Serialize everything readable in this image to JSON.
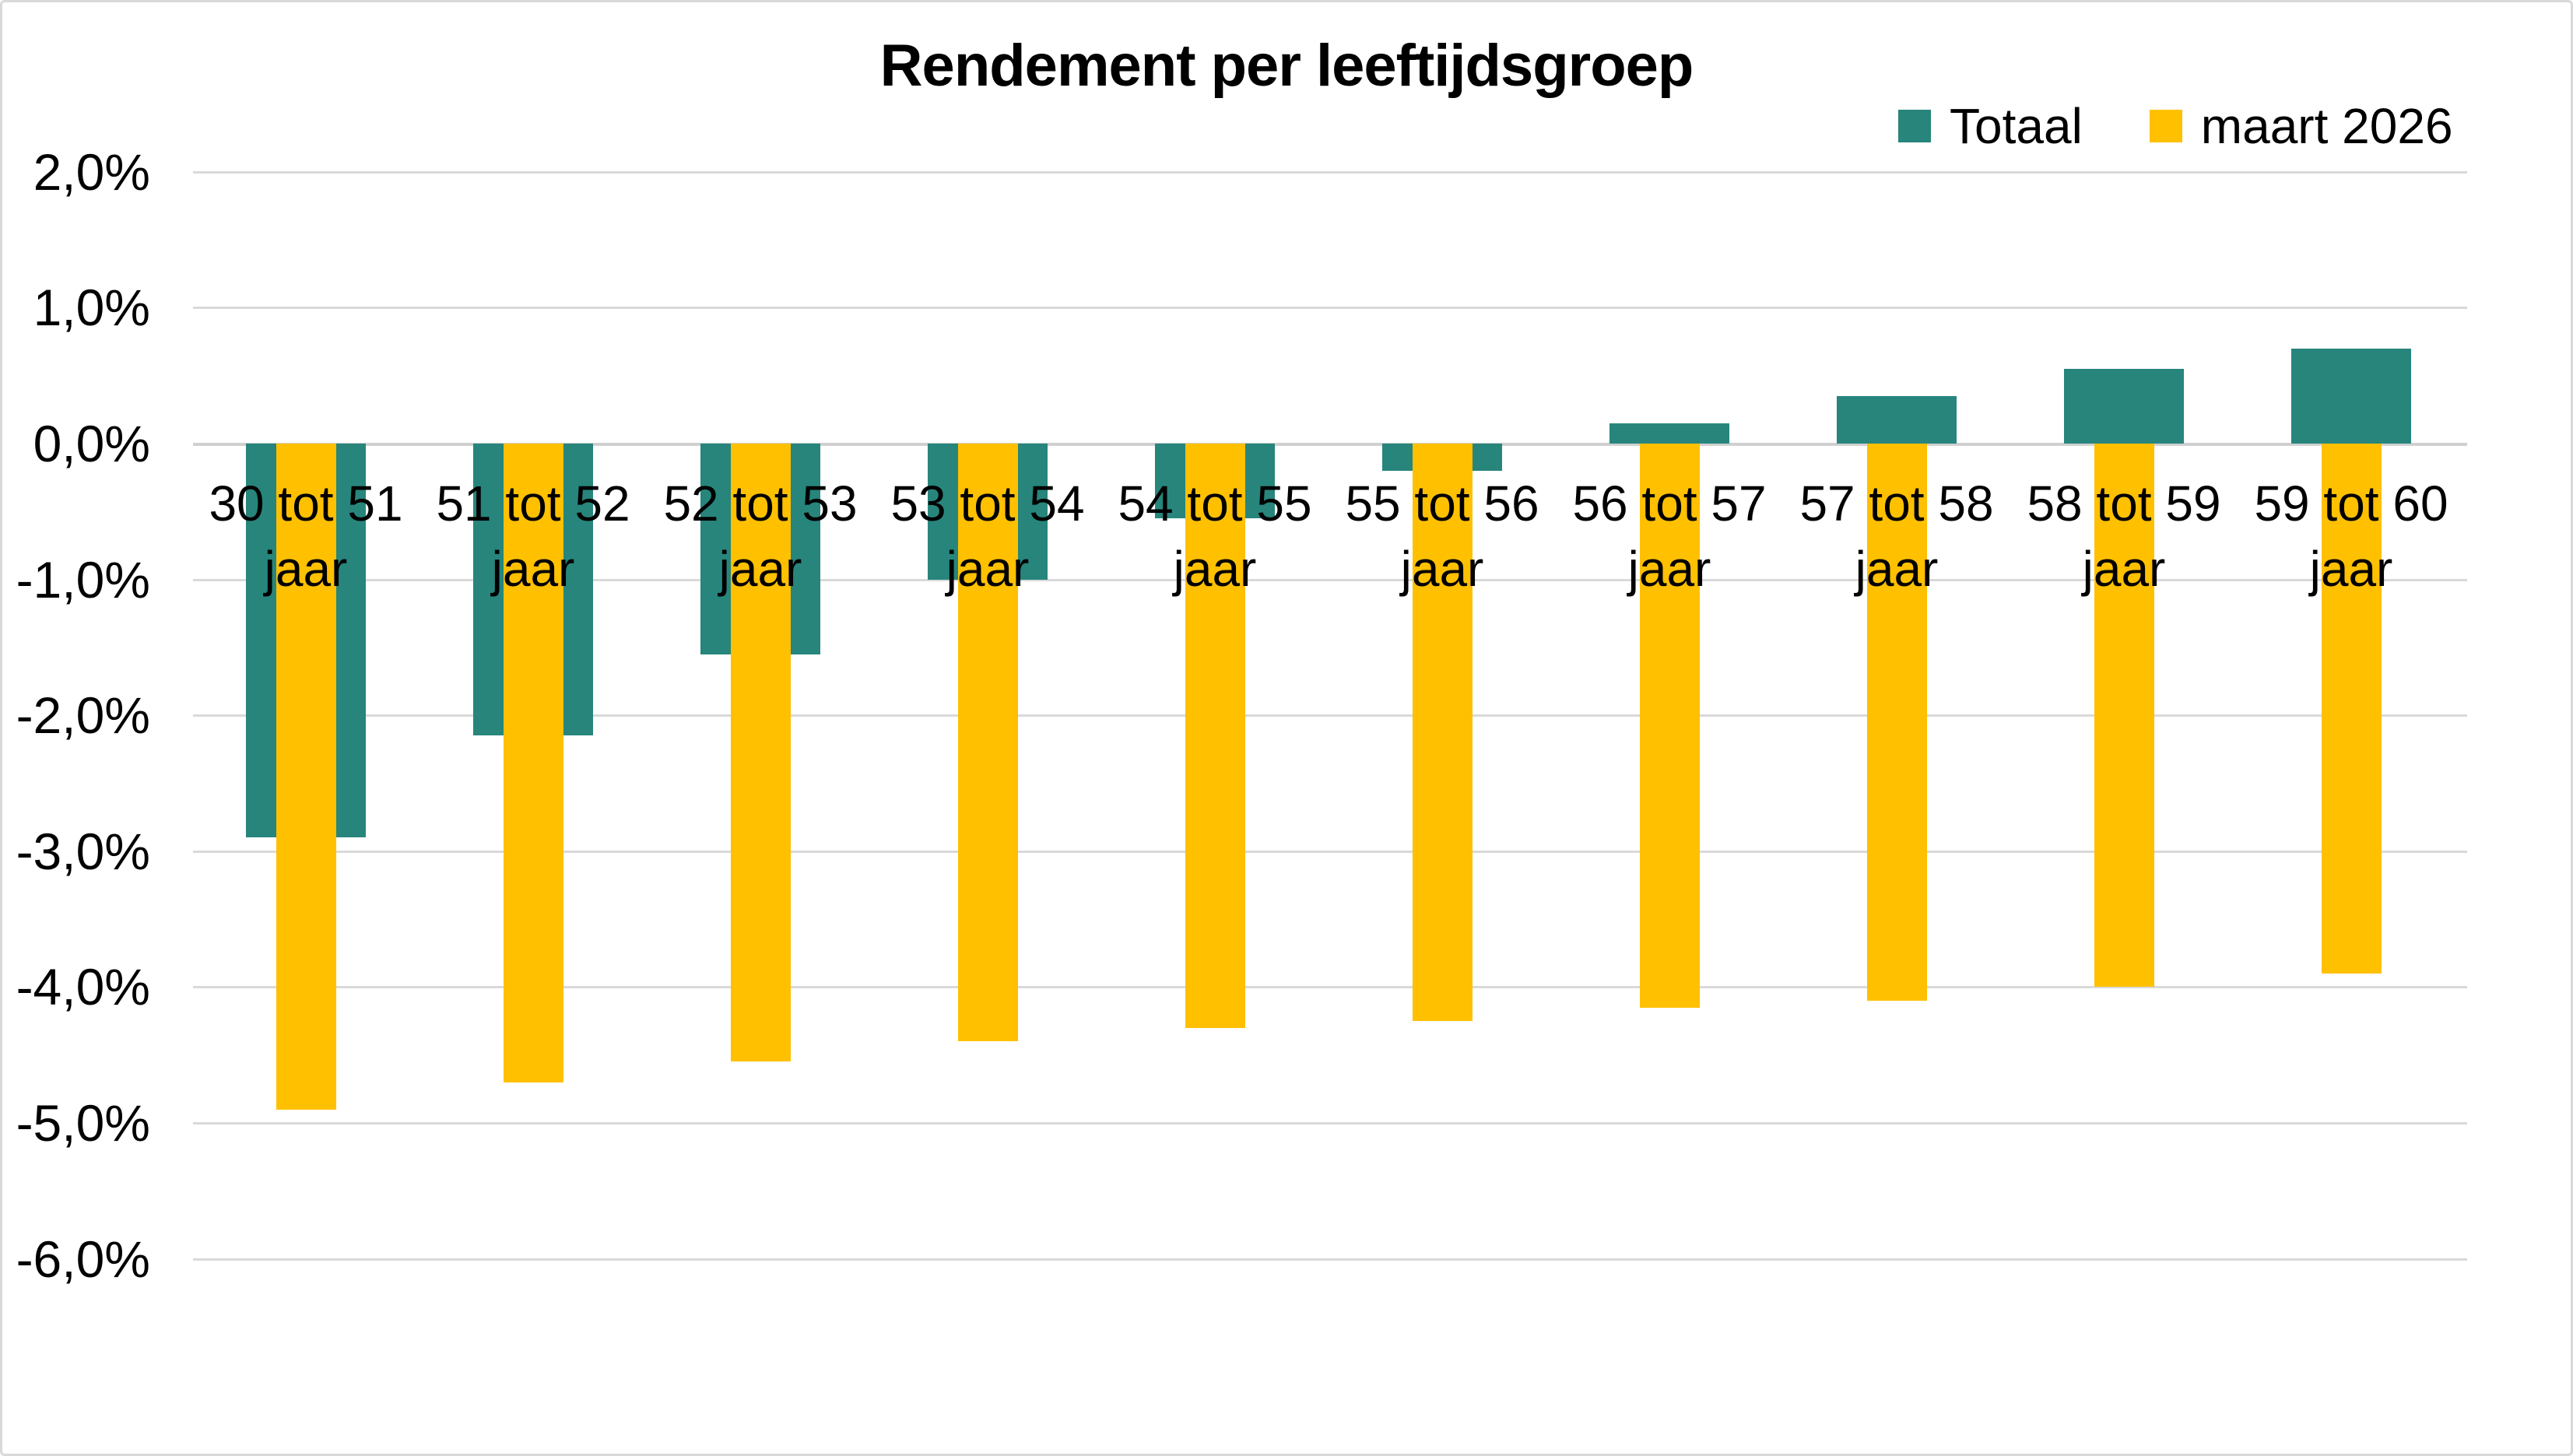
{
  "chart_data": {
    "type": "bar",
    "title": "Rendement per leeftijdsgroep",
    "unit": "%",
    "grid": true,
    "legend_position": "top-right",
    "categories": [
      {
        "line1": "30 tot 51",
        "line2": "jaar"
      },
      {
        "line1": "51 tot 52",
        "line2": "jaar"
      },
      {
        "line1": "52 tot 53",
        "line2": "jaar"
      },
      {
        "line1": "53 tot 54",
        "line2": "jaar"
      },
      {
        "line1": "54 tot 55",
        "line2": "jaar"
      },
      {
        "line1": "55 tot 56",
        "line2": "jaar"
      },
      {
        "line1": "56 tot 57",
        "line2": "jaar"
      },
      {
        "line1": "57 tot 58",
        "line2": "jaar"
      },
      {
        "line1": "58 tot 59",
        "line2": "jaar"
      },
      {
        "line1": "59 tot 60",
        "line2": "jaar"
      }
    ],
    "series": [
      {
        "name": "Totaal",
        "color": "#27857C",
        "values": [
          -2.9,
          -2.15,
          -1.55,
          -1.0,
          -0.55,
          -0.2,
          0.15,
          0.35,
          0.55,
          0.7
        ]
      },
      {
        "name": "maart 2026",
        "color": "#FFC000",
        "values": [
          -4.9,
          -4.7,
          -4.55,
          -4.4,
          -4.3,
          -4.25,
          -4.15,
          -4.1,
          -4.0,
          -3.9
        ]
      }
    ],
    "y_axis": {
      "min": -6,
      "max": 2,
      "ticks": [
        {
          "value": 2,
          "label": "2,0%"
        },
        {
          "value": 1,
          "label": "1,0%"
        },
        {
          "value": 0,
          "label": "0,0%"
        },
        {
          "value": -1,
          "label": "-1,0%"
        },
        {
          "value": -2,
          "label": "-2,0%"
        },
        {
          "value": -3,
          "label": "-3,0%"
        },
        {
          "value": -4,
          "label": "-4,0%"
        },
        {
          "value": -5,
          "label": "-5,0%"
        },
        {
          "value": -6,
          "label": "-6,0%"
        }
      ]
    }
  }
}
